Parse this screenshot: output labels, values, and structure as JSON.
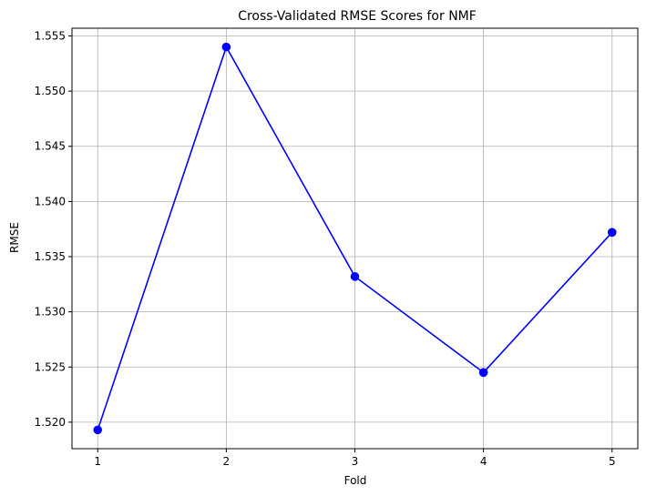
{
  "chart_data": {
    "type": "line",
    "title": "Cross-Validated RMSE Scores for NMF",
    "xlabel": "Fold",
    "ylabel": "RMSE",
    "x": [
      1,
      2,
      3,
      4,
      5
    ],
    "series": [
      {
        "values": [
          1.5193,
          1.554,
          1.5332,
          1.5245,
          1.5372
        ],
        "color": "#0000ff",
        "marker": "circle"
      }
    ],
    "xticks": [
      "1",
      "2",
      "3",
      "4",
      "5"
    ],
    "yticks": [
      "1.520",
      "1.525",
      "1.530",
      "1.535",
      "1.540",
      "1.545",
      "1.550",
      "1.555"
    ],
    "xlim": [
      0.8,
      5.2
    ],
    "ylim": [
      1.5176,
      1.5557
    ],
    "grid": true
  }
}
